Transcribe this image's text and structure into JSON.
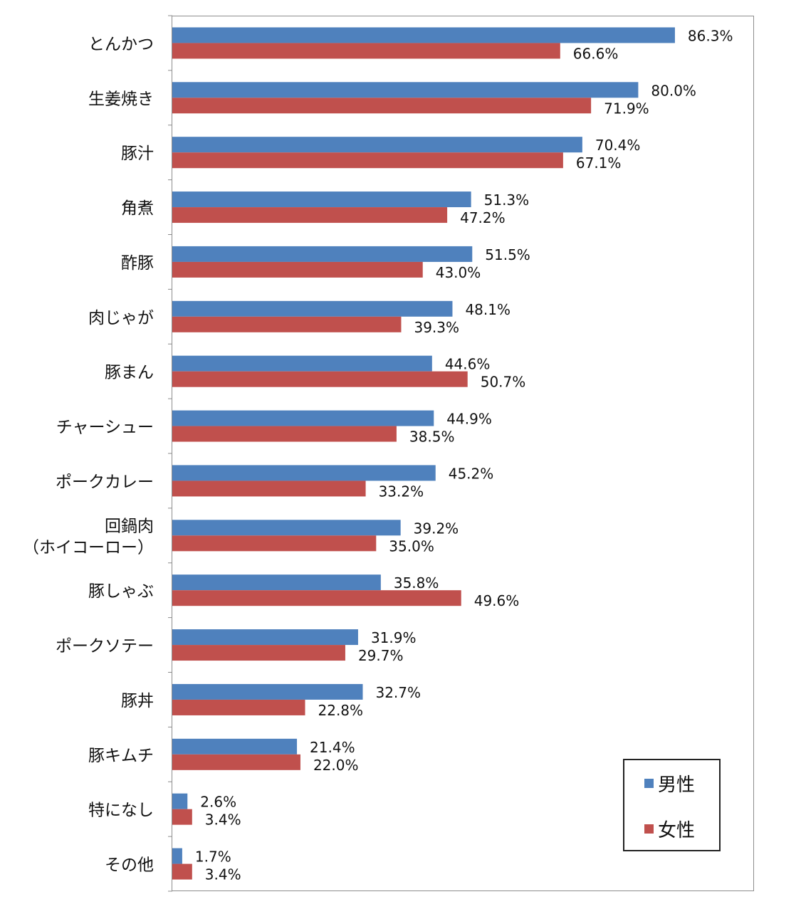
{
  "chart_data": {
    "type": "bar",
    "orientation": "horizontal",
    "categories": [
      [
        "とんかつ"
      ],
      [
        "生姜焼き"
      ],
      [
        "豚汁"
      ],
      [
        "角煮"
      ],
      [
        "酢豚"
      ],
      [
        "肉じゃが"
      ],
      [
        "豚まん"
      ],
      [
        "チャーシュー"
      ],
      [
        "ポークカレー"
      ],
      [
        "回鍋肉",
        "（ホイコーロー）"
      ],
      [
        "豚しゃぶ"
      ],
      [
        "ポークソテー"
      ],
      [
        "豚丼"
      ],
      [
        "豚キムチ"
      ],
      [
        "特になし"
      ],
      [
        "その他"
      ]
    ],
    "series": [
      {
        "name": "男性",
        "color": "#4f81bd",
        "values": [
          86.3,
          80.0,
          70.4,
          51.3,
          51.5,
          48.1,
          44.6,
          44.9,
          45.2,
          39.2,
          35.8,
          31.9,
          32.7,
          21.4,
          2.6,
          1.7
        ],
        "labels": [
          "86.3%",
          "80.0%",
          "70.4%",
          "51.3%",
          "51.5%",
          "48.1%",
          "44.6%",
          "44.9%",
          "45.2%",
          "39.2%",
          "35.8%",
          "31.9%",
          "32.7%",
          "21.4%",
          "2.6%",
          "1.7%"
        ]
      },
      {
        "name": "女性",
        "color": "#c0504d",
        "values": [
          66.6,
          71.9,
          67.1,
          47.2,
          43.0,
          39.3,
          50.7,
          38.5,
          33.2,
          35.0,
          49.6,
          29.7,
          22.8,
          22.0,
          3.4,
          3.4
        ],
        "labels": [
          "66.6%",
          "71.9%",
          "67.1%",
          "47.2%",
          "43.0%",
          "39.3%",
          "50.7%",
          "38.5%",
          "33.2%",
          "35.0%",
          "49.6%",
          "29.7%",
          "22.8%",
          "22.0%",
          "3.4%",
          "3.4%"
        ]
      }
    ],
    "xlim": [
      0,
      100
    ],
    "grid": false,
    "legend": "bottom-right"
  }
}
